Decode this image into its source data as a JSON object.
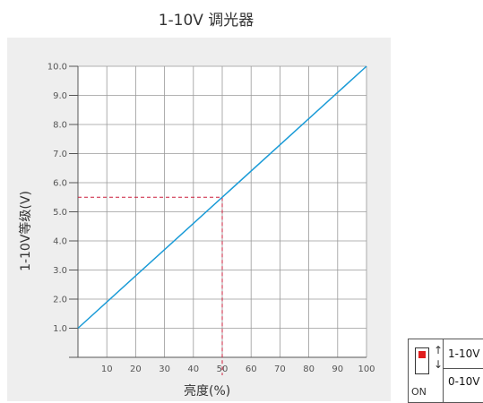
{
  "chart_data": {
    "type": "line",
    "title": "1-10V 调光器",
    "xlabel": "亮度(%)",
    "ylabel": "1-10V等级(V)",
    "xlim": [
      0,
      100
    ],
    "ylim": [
      0,
      10
    ],
    "xticks": [
      10,
      20,
      30,
      40,
      50,
      60,
      70,
      80,
      90,
      100
    ],
    "yticks": [
      1.0,
      2.0,
      3.0,
      4.0,
      5.0,
      6.0,
      7.0,
      8.0,
      9.0,
      10.0
    ],
    "ytick_labels": [
      "1.0",
      "2.0",
      "3.0",
      "4.0",
      "5.0",
      "6.0",
      "7.0",
      "8.0",
      "9.0",
      "10.0"
    ],
    "grid": true,
    "series": [
      {
        "x": [
          0,
          100
        ],
        "y": [
          1.0,
          10.0
        ],
        "color": "#1a9bd7"
      }
    ],
    "annotation": {
      "x": 50,
      "y": 5.5,
      "color": "#cc1f3c",
      "style": "dashed"
    }
  },
  "switch": {
    "on_label": "ON",
    "options": [
      "1-10V",
      "0-10V"
    ],
    "indicator_color": "#e11d1d",
    "up_arrow": "↑",
    "down_arrow": "↓"
  }
}
